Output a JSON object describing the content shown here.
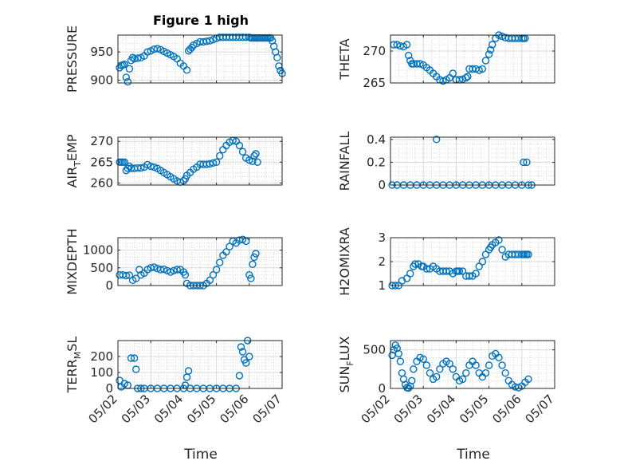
{
  "figure_title": "Figure 1 high",
  "x_axis": {
    "label": "Time",
    "tick_labels": [
      "05/02",
      "05/03",
      "05/04",
      "05/05",
      "05/06",
      "05/07"
    ]
  },
  "colors": {
    "marker": "#0072bd"
  },
  "chart_data": [
    {
      "type": "scatter",
      "id": "pressure",
      "ylabel": "PRESSURE",
      "ylim": [
        895,
        980
      ],
      "yticks": [
        900,
        950
      ],
      "x": [
        0.05,
        0.1,
        0.15,
        0.2,
        0.25,
        0.3,
        0.35,
        0.4,
        0.45,
        0.5,
        0.6,
        0.7,
        0.8,
        0.9,
        1.0,
        1.1,
        1.2,
        1.3,
        1.4,
        1.5,
        1.6,
        1.7,
        1.8,
        1.9,
        2.0,
        2.1,
        2.15,
        2.2,
        2.25,
        2.3,
        2.4,
        2.5,
        2.6,
        2.7,
        2.8,
        2.9,
        3.0,
        3.1,
        3.2,
        3.3,
        3.4,
        3.5,
        3.6,
        3.7,
        3.8,
        3.9,
        4.0,
        4.05,
        4.1,
        4.15,
        4.2,
        4.25,
        4.3,
        4.35,
        4.4,
        4.45,
        4.5,
        4.55,
        4.6,
        4.65,
        4.7,
        4.75,
        4.8,
        4.85,
        4.9,
        4.95,
        5.0
      ],
      "y": [
        922,
        926,
        927,
        928,
        905,
        897,
        920,
        935,
        940,
        938,
        939,
        940,
        943,
        950,
        952,
        955,
        956,
        954,
        951,
        948,
        945,
        942,
        938,
        930,
        925,
        918,
        952,
        955,
        958,
        962,
        965,
        968,
        968,
        969,
        970,
        972,
        974,
        976,
        976,
        976,
        976,
        976,
        976,
        976,
        976,
        976,
        976,
        975,
        975,
        975,
        975,
        975,
        975,
        975,
        975,
        975,
        975,
        975,
        975,
        975,
        970,
        960,
        950,
        940,
        925,
        917,
        912
      ]
    },
    {
      "type": "scatter",
      "id": "theta",
      "ylabel": "THETA",
      "ylim": [
        265,
        272.5
      ],
      "yticks": [
        265,
        270
      ],
      "x": [
        0.1,
        0.2,
        0.3,
        0.4,
        0.5,
        0.55,
        0.6,
        0.65,
        0.7,
        0.8,
        0.9,
        1.0,
        1.1,
        1.2,
        1.3,
        1.4,
        1.5,
        1.6,
        1.7,
        1.8,
        1.9,
        2.0,
        2.1,
        2.2,
        2.3,
        2.35,
        2.4,
        2.5,
        2.6,
        2.7,
        2.8,
        2.9,
        3.0,
        3.05,
        3.1,
        3.2,
        3.3,
        3.4,
        3.5,
        3.6,
        3.7,
        3.8,
        3.9,
        4.0,
        4.05,
        4.1
      ],
      "y": [
        271,
        271,
        270.8,
        270.7,
        271,
        269.3,
        268.5,
        268,
        268,
        268,
        268,
        267.8,
        267.4,
        267,
        266.5,
        266,
        265.5,
        265.3,
        265.5,
        265.8,
        266.5,
        265.5,
        265.5,
        265.6,
        265.8,
        266,
        267.2,
        267.2,
        267.2,
        267,
        267.2,
        268.5,
        269.5,
        270.2,
        271,
        272,
        272.5,
        272.3,
        272.1,
        272,
        272,
        272,
        272,
        272,
        272,
        272
      ]
    },
    {
      "type": "scatter",
      "id": "air_temp",
      "ylabel_main": "AIR",
      "ylabel_sub": "T",
      "ylabel_rest": "EMP",
      "ylim": [
        259.5,
        271
      ],
      "yticks": [
        260,
        265,
        270
      ],
      "x": [
        0.05,
        0.1,
        0.15,
        0.2,
        0.25,
        0.3,
        0.35,
        0.4,
        0.5,
        0.6,
        0.7,
        0.8,
        0.9,
        1.0,
        1.1,
        1.2,
        1.3,
        1.4,
        1.5,
        1.6,
        1.7,
        1.8,
        1.9,
        2.0,
        2.05,
        2.1,
        2.2,
        2.3,
        2.4,
        2.5,
        2.6,
        2.7,
        2.8,
        2.9,
        3.0,
        3.1,
        3.2,
        3.3,
        3.4,
        3.5,
        3.6,
        3.7,
        3.8,
        3.9,
        4.0,
        4.1,
        4.15,
        4.2,
        4.25
      ],
      "y": [
        265,
        265,
        265,
        265,
        263,
        263.5,
        264,
        263.5,
        263.5,
        263.6,
        263.6,
        263.8,
        264.4,
        264,
        263.8,
        263.5,
        263,
        262.5,
        262,
        261.5,
        261,
        260.5,
        260.2,
        260.5,
        261,
        261.8,
        262.5,
        263.3,
        263.8,
        264.5,
        264.5,
        264.5,
        264.6,
        264.8,
        265,
        266.5,
        268,
        269,
        269.8,
        270.2,
        270,
        269,
        267.5,
        266,
        265.5,
        265.2,
        266.5,
        267,
        265
      ]
    },
    {
      "type": "scatter",
      "id": "rainfall",
      "ylabel": "RAINFALL",
      "ylim": [
        0,
        0.42
      ],
      "yticks": [
        0,
        0.2,
        0.4
      ],
      "x": [
        0.05,
        0.2,
        0.4,
        0.6,
        0.8,
        1.0,
        1.2,
        1.4,
        1.6,
        1.8,
        2.0,
        2.2,
        2.4,
        2.6,
        2.8,
        3.0,
        3.2,
        3.4,
        3.6,
        3.8,
        4.0,
        4.05,
        4.15,
        4.2,
        4.3,
        1.4
      ],
      "y": [
        0,
        0,
        0,
        0,
        0,
        0,
        0,
        0,
        0,
        0,
        0,
        0,
        0,
        0,
        0,
        0,
        0,
        0,
        0,
        0,
        0,
        0.2,
        0.2,
        0,
        0,
        0.4
      ]
    },
    {
      "type": "scatter",
      "id": "mixdepth",
      "ylabel": "MIXDEPTH",
      "ylim": [
        0,
        1350
      ],
      "yticks": [
        0,
        500,
        1000
      ],
      "x": [
        0.05,
        0.15,
        0.25,
        0.35,
        0.45,
        0.55,
        0.65,
        0.7,
        0.8,
        0.9,
        1.0,
        1.1,
        1.2,
        1.3,
        1.4,
        1.5,
        1.6,
        1.7,
        1.8,
        1.9,
        2.0,
        2.05,
        2.1,
        2.2,
        2.3,
        2.4,
        2.5,
        2.6,
        2.7,
        2.8,
        2.9,
        3.0,
        3.1,
        3.2,
        3.3,
        3.4,
        3.5,
        3.6,
        3.7,
        3.8,
        3.9,
        4.0,
        4.05,
        4.1,
        4.15,
        4.2
      ],
      "y": [
        300,
        300,
        280,
        290,
        150,
        200,
        450,
        300,
        350,
        450,
        500,
        520,
        480,
        450,
        460,
        420,
        380,
        420,
        450,
        450,
        380,
        300,
        60,
        0,
        0,
        0,
        0,
        0,
        60,
        150,
        300,
        450,
        650,
        850,
        950,
        1100,
        1250,
        1200,
        1280,
        1300,
        1250,
        300,
        200,
        600,
        800,
        900
      ]
    },
    {
      "type": "scatter",
      "id": "h2omixra",
      "ylabel": "H2OMIXRA",
      "ylim": [
        1,
        3
      ],
      "yticks": [
        1,
        2,
        3
      ],
      "x": [
        0.05,
        0.15,
        0.25,
        0.35,
        0.5,
        0.6,
        0.7,
        0.75,
        0.85,
        0.95,
        1.0,
        1.1,
        1.2,
        1.3,
        1.4,
        1.5,
        1.6,
        1.7,
        1.8,
        1.9,
        2.0,
        2.05,
        2.1,
        2.2,
        2.3,
        2.4,
        2.5,
        2.6,
        2.7,
        2.8,
        2.9,
        3.0,
        3.05,
        3.1,
        3.2,
        3.3,
        3.4,
        3.5,
        3.6,
        3.7,
        3.8,
        3.9,
        4.0,
        4.05,
        4.1,
        4.15,
        4.2
      ],
      "y": [
        1,
        1,
        1,
        1.2,
        1.3,
        1.5,
        1.8,
        1.9,
        1.9,
        1.8,
        1.8,
        1.7,
        1.7,
        1.8,
        1.7,
        1.6,
        1.6,
        1.6,
        1.6,
        1.5,
        1.6,
        1.6,
        1.6,
        1.6,
        1.4,
        1.4,
        1.4,
        1.5,
        1.8,
        2,
        2.3,
        2.5,
        2.6,
        2.7,
        2.8,
        2.9,
        2.5,
        2.2,
        2.3,
        2.3,
        2.3,
        2.3,
        2.3,
        2.3,
        2.3,
        2.3,
        2.3
      ]
    },
    {
      "type": "scatter",
      "id": "terr_msl",
      "ylabel_main": "TERR",
      "ylabel_sub": "M",
      "ylabel_rest": "SL",
      "ylim": [
        0,
        300
      ],
      "yticks": [
        0,
        100,
        200
      ],
      "x": [
        0.05,
        0.1,
        0.2,
        0.3,
        0.4,
        0.5,
        0.55,
        0.6,
        0.7,
        0.8,
        1.0,
        1.2,
        1.4,
        1.6,
        1.8,
        2.0,
        2.05,
        2.1,
        2.15,
        2.2,
        2.4,
        2.6,
        2.8,
        3.0,
        3.2,
        3.4,
        3.6,
        3.7,
        3.75,
        3.8,
        3.85,
        3.9,
        3.95,
        4.0
      ],
      "y": [
        50,
        10,
        30,
        20,
        190,
        190,
        120,
        0,
        0,
        0,
        0,
        0,
        0,
        0,
        0,
        0,
        20,
        70,
        110,
        0,
        0,
        0,
        0,
        0,
        0,
        0,
        0,
        80,
        260,
        230,
        180,
        160,
        300,
        200
      ]
    },
    {
      "type": "scatter",
      "id": "sun_flux",
      "ylabel_main": "SUN",
      "ylabel_sub": "F",
      "ylabel_rest": "LUX",
      "ylim": [
        0,
        620
      ],
      "yticks": [
        0,
        500
      ],
      "x": [
        0.05,
        0.1,
        0.15,
        0.2,
        0.25,
        0.3,
        0.35,
        0.4,
        0.45,
        0.5,
        0.55,
        0.6,
        0.65,
        0.7,
        0.8,
        0.9,
        1.0,
        1.1,
        1.2,
        1.3,
        1.4,
        1.5,
        1.6,
        1.7,
        1.8,
        1.9,
        2.0,
        2.1,
        2.2,
        2.3,
        2.4,
        2.5,
        2.6,
        2.7,
        2.8,
        2.9,
        3.0,
        3.1,
        3.2,
        3.3,
        3.4,
        3.5,
        3.6,
        3.7,
        3.8,
        3.9,
        4.0,
        4.1,
        4.2
      ],
      "y": [
        430,
        500,
        560,
        520,
        450,
        350,
        200,
        120,
        50,
        10,
        5,
        30,
        100,
        250,
        350,
        400,
        380,
        300,
        200,
        120,
        150,
        250,
        320,
        350,
        320,
        250,
        150,
        100,
        120,
        200,
        300,
        350,
        300,
        200,
        150,
        200,
        300,
        420,
        450,
        400,
        300,
        200,
        100,
        50,
        20,
        10,
        30,
        80,
        120
      ]
    }
  ]
}
